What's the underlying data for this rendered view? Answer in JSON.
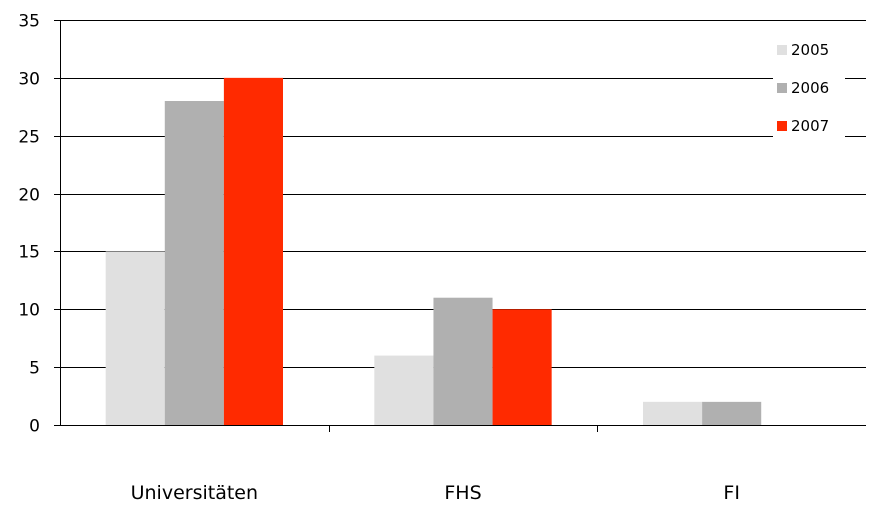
{
  "chart_data": {
    "type": "bar",
    "title": "",
    "xlabel": "",
    "ylabel": "",
    "categories": [
      "Universitäten",
      "FHS",
      "FI"
    ],
    "series": [
      {
        "name": "2005",
        "values": [
          15,
          6,
          2
        ],
        "color": "#e0e0e0"
      },
      {
        "name": "2006",
        "values": [
          28,
          11,
          2
        ],
        "color": "#b0b0b0"
      },
      {
        "name": "2007",
        "values": [
          30,
          10,
          0
        ],
        "color": "#ff2a00"
      }
    ],
    "ylim": [
      0,
      35
    ],
    "yticks": [
      0,
      5,
      10,
      15,
      20,
      25,
      30,
      35
    ],
    "grid": true,
    "legend_position": "top-right"
  }
}
